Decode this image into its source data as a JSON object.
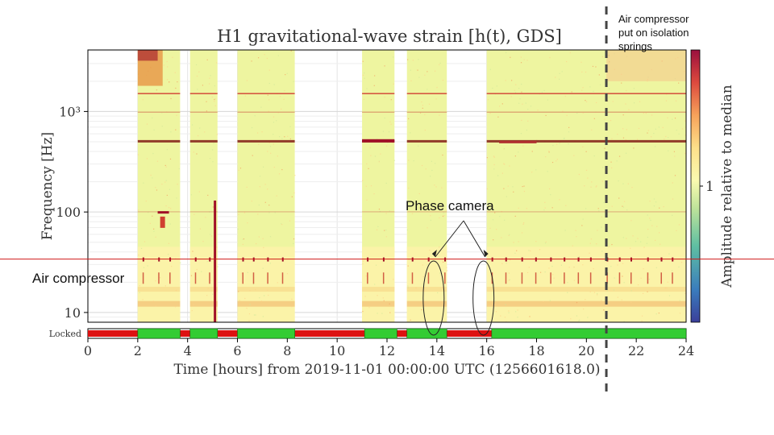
{
  "chart_data": {
    "type": "heatmap",
    "title": "H1 gravitational-wave strain [h(t), GDS]",
    "xlabel": "Time [hours] from 2019-11-01 00:00:00 UTC (1256601618.0)",
    "ylabel": "Frequency [Hz]",
    "xlim": [
      0,
      24
    ],
    "ylim": [
      8,
      4096
    ],
    "yscale": "log",
    "grid": true,
    "x_ticks": [
      0,
      2,
      4,
      6,
      8,
      10,
      12,
      14,
      16,
      18,
      20,
      22,
      24
    ],
    "x_tick_labels": [
      "0",
      "2",
      "4",
      "6",
      "8",
      "10",
      "12",
      "14",
      "16",
      "18",
      "20",
      "22",
      "24"
    ],
    "y_ticks": [
      10,
      100,
      1000
    ],
    "y_tick_labels": [
      "10",
      "100",
      "10³"
    ],
    "colorbar": {
      "label": "Amplitude relative to median",
      "tick_value": 1,
      "tick_label": "1",
      "colormap": "Spectral_r"
    },
    "data_segments_hours": [
      [
        2.0,
        3.7
      ],
      [
        4.1,
        5.2
      ],
      [
        6.0,
        8.3
      ],
      [
        11.0,
        12.3
      ],
      [
        12.8,
        14.4
      ],
      [
        16.0,
        24.0
      ]
    ],
    "state_bar": {
      "label": "Locked",
      "locked_segments_hours": [
        [
          2.0,
          3.7
        ],
        [
          4.1,
          5.2
        ],
        [
          6.0,
          8.3
        ],
        [
          11.1,
          12.4
        ],
        [
          12.8,
          14.4
        ],
        [
          16.2,
          24.0
        ]
      ],
      "locked_color": "#33cc33",
      "unlocked_color": "#dd1111"
    },
    "lines_hz": [
      {
        "freq": 1500,
        "color": "#cc2222"
      },
      {
        "freq": 980,
        "color": "#d89a6a"
      },
      {
        "freq": 510,
        "color": "#7a0d0d"
      },
      {
        "freq": 100,
        "color": "#c03030"
      }
    ],
    "annotations": {
      "air_compressor_freq_hz": 34,
      "air_compressor_label": "Air compressor",
      "vertical_marker_hour": 20.8,
      "vertical_marker_label": [
        "Air compressor",
        "put on isolation",
        "springs"
      ],
      "phase_camera_label": "Phase camera",
      "phase_camera_hours": [
        14.0,
        16.0
      ]
    }
  },
  "colors": {
    "background_quiet": "#fafab0",
    "background_mid": "#eef5a0",
    "excess": "#e89a4a",
    "strong": "#a01028",
    "locked": "#33cc33",
    "unlocked": "#dd1111",
    "marker": "#444444"
  }
}
